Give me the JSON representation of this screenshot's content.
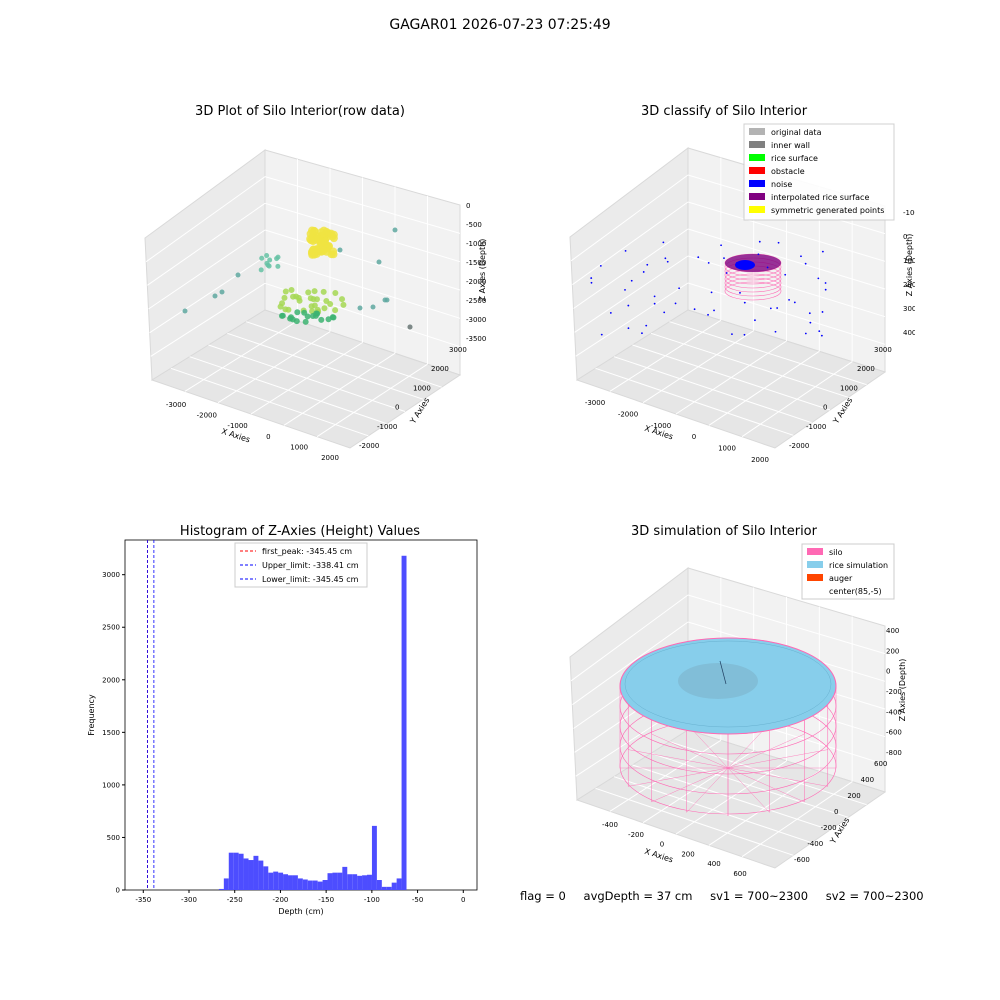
{
  "suptitle": "GAGAR01 2026-07-23 07:25:49",
  "panels": {
    "raw": {
      "title": "3D Plot of Silo Interior(row data)",
      "xlabel": "X Axies",
      "ylabel": "Y Axies",
      "zlabel": "Z Axies (Depth)",
      "xticks": [
        "-3000",
        "-2000",
        "-1000",
        "0",
        "1000",
        "2000"
      ],
      "yticks": [
        "-2000",
        "-1000",
        "0",
        "1000",
        "2000",
        "3000"
      ],
      "zticks": [
        "0",
        "-500",
        "-1000",
        "-1500",
        "-2000",
        "-2500",
        "-3000",
        "-3500"
      ]
    },
    "classify": {
      "title": "3D classify of Silo Interior",
      "xlabel": "X Axies",
      "ylabel": "Y Axies",
      "zlabel": "Z Axies (Depth)",
      "xticks": [
        "-3000",
        "-2000",
        "-1000",
        "0",
        "1000",
        "2000"
      ],
      "yticks": [
        "-2000",
        "-1000",
        "0",
        "1000",
        "2000",
        "3000"
      ],
      "zticks": [
        "-1000",
        "0",
        "1000",
        "2000",
        "3000",
        "4000"
      ],
      "legend": [
        {
          "label": "original data",
          "color": "#b3b3b3"
        },
        {
          "label": "inner wall",
          "color": "#808080"
        },
        {
          "label": "rice surface",
          "color": "#00ff00"
        },
        {
          "label": "obstacle",
          "color": "#ff0000"
        },
        {
          "label": "noise",
          "color": "#0000ff"
        },
        {
          "label": "interpolated rice surface",
          "color": "#800080"
        },
        {
          "label": "symmetric generated points",
          "color": "#ffff00"
        }
      ]
    },
    "histogram": {
      "title": "Histogram of Z-Axies (Height) Values",
      "xlabel": "Depth (cm)",
      "ylabel": "Frequency",
      "legend": [
        {
          "label": "first_peak: -345.45 cm",
          "color": "#ff0000"
        },
        {
          "label": "Upper_limit: -338.41 cm",
          "color": "#0000ff"
        },
        {
          "label": "Lower_limit: -345.45 cm",
          "color": "#0000ff"
        }
      ]
    },
    "simulation": {
      "title": "3D simulation of Silo Interior",
      "xlabel": "X Axies",
      "ylabel": "Y Axies",
      "zlabel": "Z Axies (Depth)",
      "xticks": [
        "-400",
        "-200",
        "0",
        "200",
        "400",
        "600"
      ],
      "yticks": [
        "-600",
        "-400",
        "-200",
        "0",
        "200",
        "400",
        "600"
      ],
      "zticks": [
        "400",
        "200",
        "0",
        "-200",
        "-400",
        "-600",
        "-800"
      ],
      "legend": [
        {
          "label": "silo",
          "color": "#ff69b4"
        },
        {
          "label": "rice simulation",
          "color": "#87ceeb"
        },
        {
          "label": "auger",
          "color": "#ff4500"
        },
        {
          "label": "center(85,-5)",
          "color": "#ffffff"
        }
      ]
    }
  },
  "status": {
    "flag": "flag = 0",
    "avg_depth": "avgDepth = 37 cm",
    "sv1": "sv1 = 700~2300",
    "sv2": "sv2 = 700~2300"
  },
  "chart_data": {
    "type": "bar",
    "title": "Histogram of Z-Axies (Height) Values",
    "xlabel": "Depth (cm)",
    "ylabel": "Frequency",
    "xlim": [
      -370,
      15
    ],
    "ylim": [
      0,
      3330
    ],
    "xticks": [
      -350,
      -300,
      -250,
      -200,
      -150,
      -100,
      -50,
      0
    ],
    "yticks": [
      0,
      500,
      1000,
      1500,
      2000,
      2500,
      3000
    ],
    "bin_width": 5.4,
    "bin_start": -267.3,
    "values": [
      10,
      110,
      355,
      355,
      345,
      300,
      285,
      325,
      280,
      225,
      165,
      175,
      165,
      150,
      140,
      140,
      110,
      100,
      90,
      90,
      80,
      95,
      160,
      165,
      165,
      220,
      150,
      150,
      135,
      140,
      145,
      610,
      95,
      30,
      30,
      70,
      110,
      3180
    ],
    "vlines": [
      {
        "name": "first_peak: -345.45 cm",
        "x": -345.45,
        "color": "#ff0000"
      },
      {
        "name": "Upper_limit: -338.41 cm",
        "x": -338.41,
        "color": "#0000ff"
      },
      {
        "name": "Lower_limit: -345.45 cm",
        "x": -345.45,
        "color": "#0000ff"
      }
    ],
    "bar_color": "#4d4dff"
  }
}
